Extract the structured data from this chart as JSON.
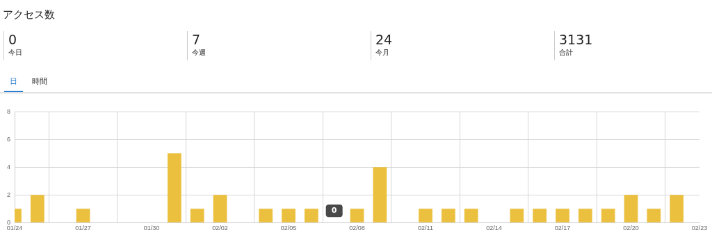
{
  "chart_data": [
    {
      "type": "other",
      "title": "アクセス数",
      "annotations": [
        "0",
        "今日",
        "7",
        "今週",
        "24",
        "今月",
        "3131",
        "合計",
        "日",
        "時間"
      ]
    },
    {
      "type": "bar",
      "x": [
        "--01-24",
        "--01-25",
        "--01-26",
        "--01-27",
        "--01-28",
        "--01-29",
        "--01-30",
        "--01-31",
        "--02-01",
        "--02-02",
        "--02-03",
        "--02-04",
        "--02-05",
        "--02-06",
        "--02-07",
        "--02-08",
        "--02-09",
        "--02-10",
        "--02-11",
        "--02-12",
        "--02-13",
        "--02-14",
        "--02-15",
        "--02-16",
        "--02-17",
        "--02-18",
        "--02-19",
        "--02-20",
        "--02-21",
        "--02-22",
        "--02-23"
      ],
      "values": [
        1,
        2,
        0,
        1,
        0,
        0,
        0,
        5,
        1,
        2,
        0,
        1,
        1,
        1,
        0,
        1,
        4,
        0,
        1,
        1,
        1,
        0,
        1,
        1,
        1,
        1,
        1,
        2,
        1,
        2,
        0
      ],
      "color": "#ebc03f",
      "xlim": [
        "--01-24",
        "--02-23"
      ],
      "xticks": [
        {
          "value": "--01-24",
          "label": "01/24"
        },
        {
          "value": "--01-27",
          "label": "01/27"
        },
        {
          "value": "--01-30",
          "label": "01/30"
        },
        {
          "value": "--02-02",
          "label": "02/02"
        },
        {
          "value": "--02-05",
          "label": "02/05"
        },
        {
          "value": "--02-08",
          "label": "02/08"
        },
        {
          "value": "--02-11",
          "label": "02/11"
        },
        {
          "value": "--02-14",
          "label": "02/14"
        },
        {
          "value": "--02-17",
          "label": "02/17"
        },
        {
          "value": "--02-20",
          "label": "02/20"
        },
        {
          "value": "--02-23",
          "label": "02/23"
        }
      ],
      "ylim": [
        0,
        8
      ],
      "yticks": [
        0,
        2,
        4,
        6,
        8
      ],
      "grid": true,
      "annotations": [
        {
          "text": "0",
          "x": "--02-07",
          "y": 0
        }
      ]
    }
  ]
}
